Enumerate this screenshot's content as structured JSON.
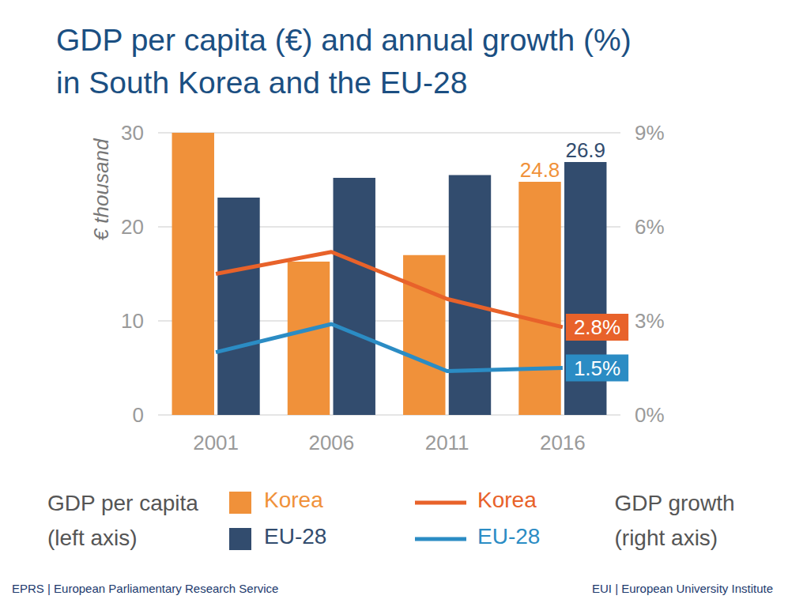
{
  "chart_data": {
    "type": "bar",
    "title": "GDP per capita (€) and annual growth (%)\nin South Korea and the EU-28",
    "y_label": "€ thousand",
    "categories": [
      "2001",
      "2006",
      "2011",
      "2016"
    ],
    "ylim": [
      0,
      30
    ],
    "yticks": [
      0,
      10,
      20,
      30
    ],
    "y2lim": [
      0,
      9
    ],
    "y2ticks": [
      {
        "value": 0,
        "label": "0%"
      },
      {
        "value": 3,
        "label": "3%"
      },
      {
        "value": 6,
        "label": "6%"
      },
      {
        "value": 9,
        "label": "9%"
      }
    ],
    "grid": true,
    "data_labels": true,
    "series": [
      {
        "name": "Korea",
        "type": "bar",
        "color": "#f0913a",
        "values": [
          30,
          16.3,
          17.0,
          24.8
        ],
        "value_labels": [
          null,
          null,
          null,
          "24.8"
        ]
      },
      {
        "name": "EU-28",
        "type": "bar",
        "color": "#324c6e",
        "values": [
          23.1,
          25.2,
          25.5,
          26.9
        ],
        "value_labels": [
          null,
          null,
          null,
          "26.9"
        ]
      },
      {
        "name": "Korea",
        "type": "line",
        "axis": "y2",
        "color": "#e8622a",
        "values": [
          4.5,
          5.2,
          3.7,
          2.8
        ],
        "value_labels": [
          null,
          null,
          null,
          "2.8%"
        ]
      },
      {
        "name": "EU-28",
        "type": "line",
        "axis": "y2",
        "color": "#2b8cc4",
        "values": [
          2.0,
          2.9,
          1.4,
          1.5
        ],
        "value_labels": [
          null,
          null,
          null,
          "1.5%"
        ]
      }
    ],
    "legend_titles": {
      "bar": "GDP per capita\n(left axis)",
      "line": "GDP growth\n(right axis)"
    },
    "sources": [
      "EPRS | European Parliamentary Research Service",
      "EUI | European University Institute"
    ]
  }
}
